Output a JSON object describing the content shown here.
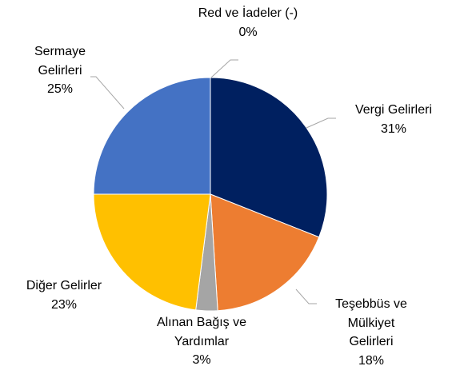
{
  "chart_data": {
    "type": "pie",
    "categories": [
      "Vergi Gelirleri",
      "Teşebbüs ve Mülkiyet Gelirleri",
      "Alınan Bağış ve Yardımlar",
      "Diğer Gelirler",
      "Sermaye Gelirleri",
      "Red ve İadeler (-)"
    ],
    "values": [
      31,
      18,
      3,
      23,
      25,
      0
    ],
    "value_labels": [
      "31%",
      "18%",
      "3%",
      "23%",
      "25%",
      "0%"
    ],
    "colors": [
      "#002060",
      "#ed7d31",
      "#a5a5a5",
      "#ffc000",
      "#4472c4",
      "#5b9bd5"
    ]
  }
}
